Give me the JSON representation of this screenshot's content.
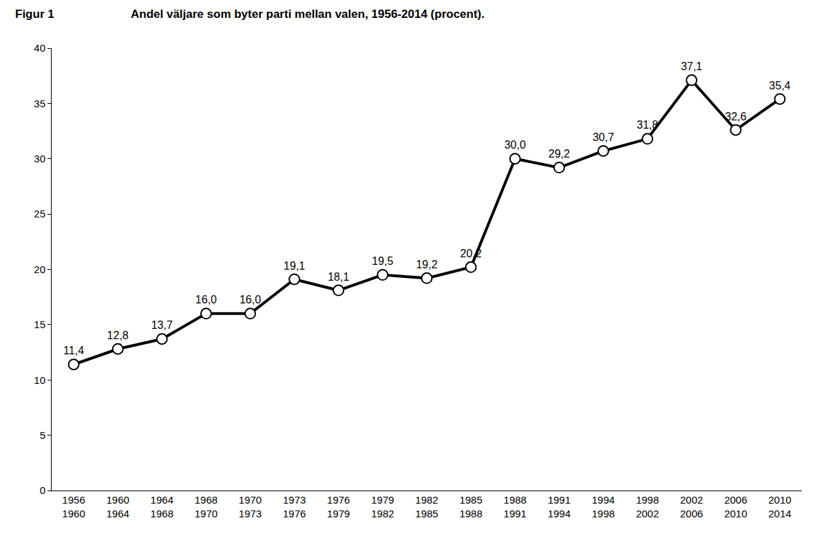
{
  "chart_data": {
    "type": "line",
    "title": "Andel väljare som byter parti mellan valen, 1956-2014 (procent).",
    "annotations": [
      "Figur 1"
    ],
    "categories": [
      "1956\n1960",
      "1960\n1964",
      "1964\n1968",
      "1968\n1970",
      "1970\n1973",
      "1973\n1976",
      "1976\n1979",
      "1979\n1982",
      "1982\n1985",
      "1985\n1988",
      "1988\n1991",
      "1991\n1994",
      "1994\n1998",
      "1998\n2002",
      "2002\n2006",
      "2006\n2010",
      "2010\n2014"
    ],
    "values": [
      11.4,
      12.8,
      13.7,
      16.0,
      16.0,
      19.1,
      18.1,
      19.5,
      19.2,
      20.2,
      30.0,
      29.2,
      30.7,
      31.8,
      37.1,
      32.6,
      35.4
    ],
    "value_labels": [
      "11,4",
      "12,8",
      "13,7",
      "16,0",
      "16,0",
      "19,1",
      "18,1",
      "19,5",
      "19,2",
      "20,2",
      "30,0",
      "29,2",
      "30,7",
      "31,8",
      "37,1",
      "32,6",
      "35,4"
    ],
    "color": "#000000",
    "marker": "circle",
    "line_style": "solid",
    "data_labels": true,
    "ylim": [
      0,
      40
    ],
    "yticks": [
      0,
      5,
      10,
      15,
      20,
      25,
      30,
      35,
      40
    ],
    "grid": false
  }
}
